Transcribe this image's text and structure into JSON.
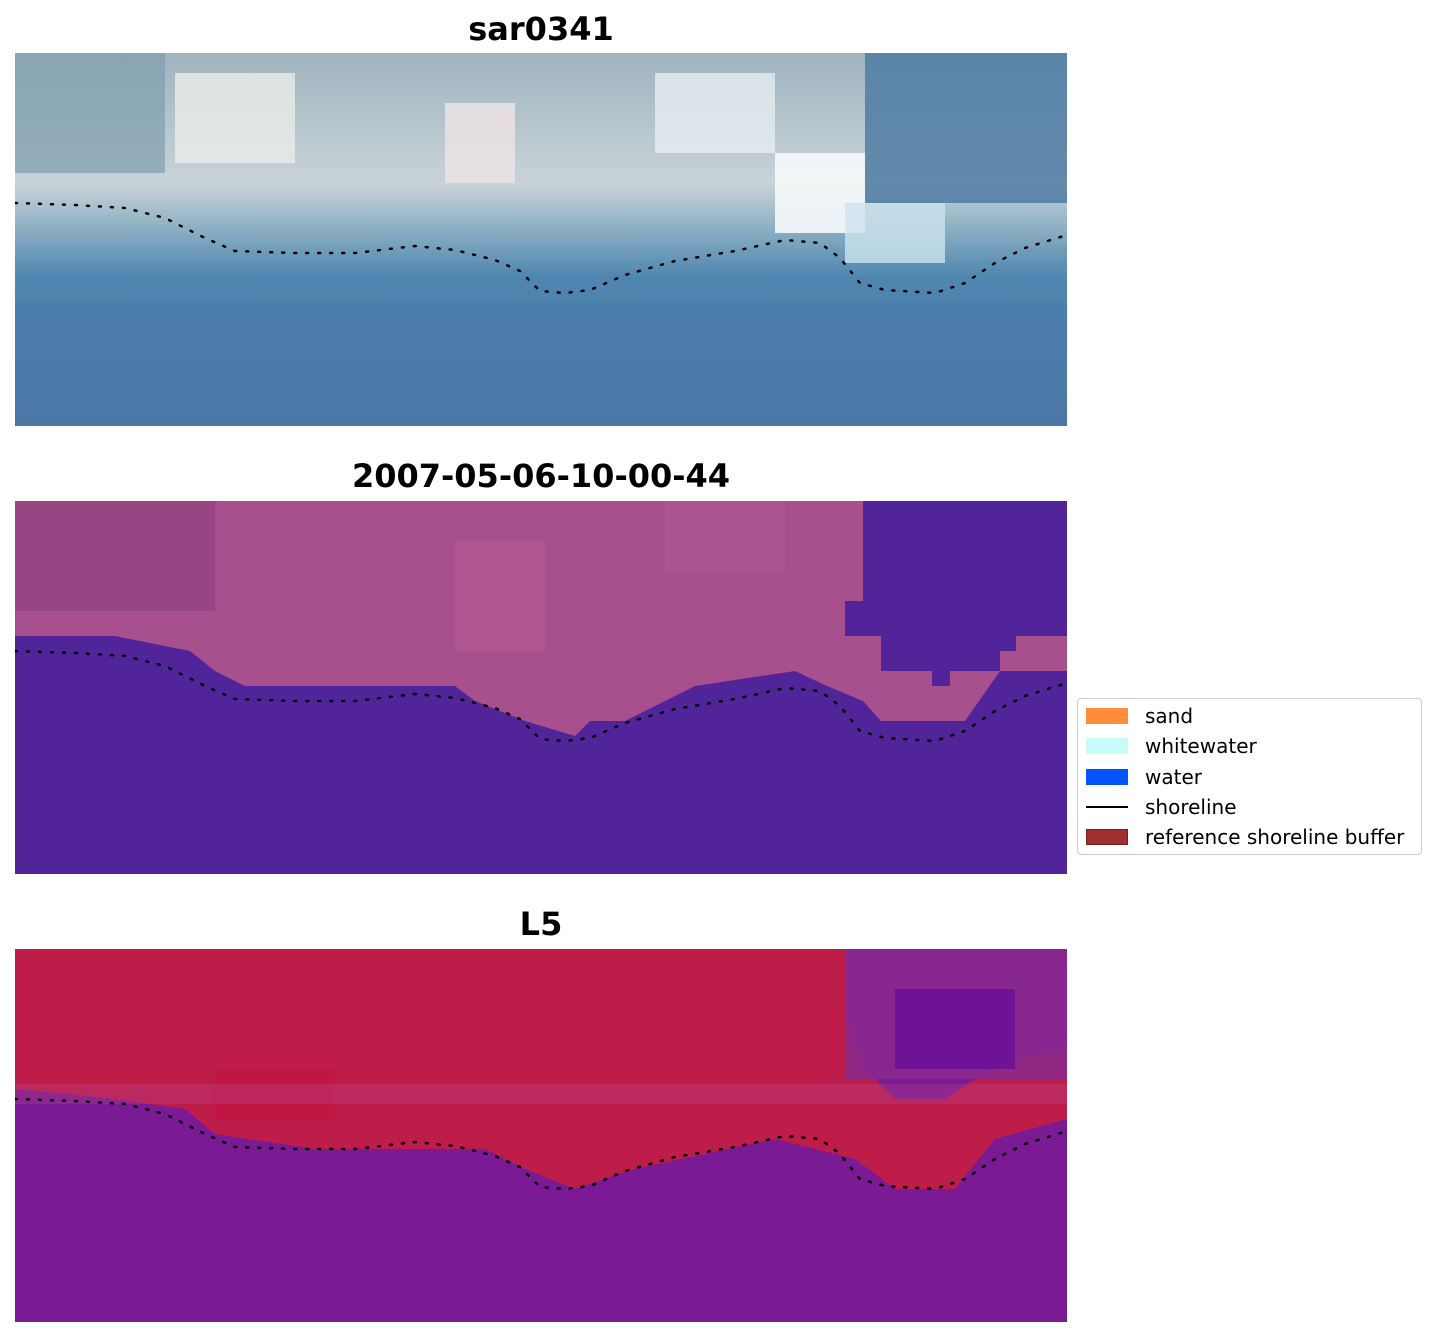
{
  "panels": [
    {
      "title": "sar0341",
      "style": "rgb"
    },
    {
      "title": "2007-05-06-10-00-44",
      "style": "classified"
    },
    {
      "title": "L5",
      "style": "index"
    }
  ],
  "legend": {
    "placement": "center-right",
    "items": [
      {
        "label": "sand",
        "color": "#ff8c3c",
        "kind": "patch"
      },
      {
        "label": "whitewater",
        "color": "#c8fcfa",
        "kind": "patch"
      },
      {
        "label": "water",
        "color": "#0055ff",
        "kind": "patch"
      },
      {
        "label": "shoreline",
        "color": "#000000",
        "kind": "line"
      },
      {
        "label": "reference shoreline buffer",
        "color": "#a03030",
        "kind": "patch"
      }
    ]
  }
}
